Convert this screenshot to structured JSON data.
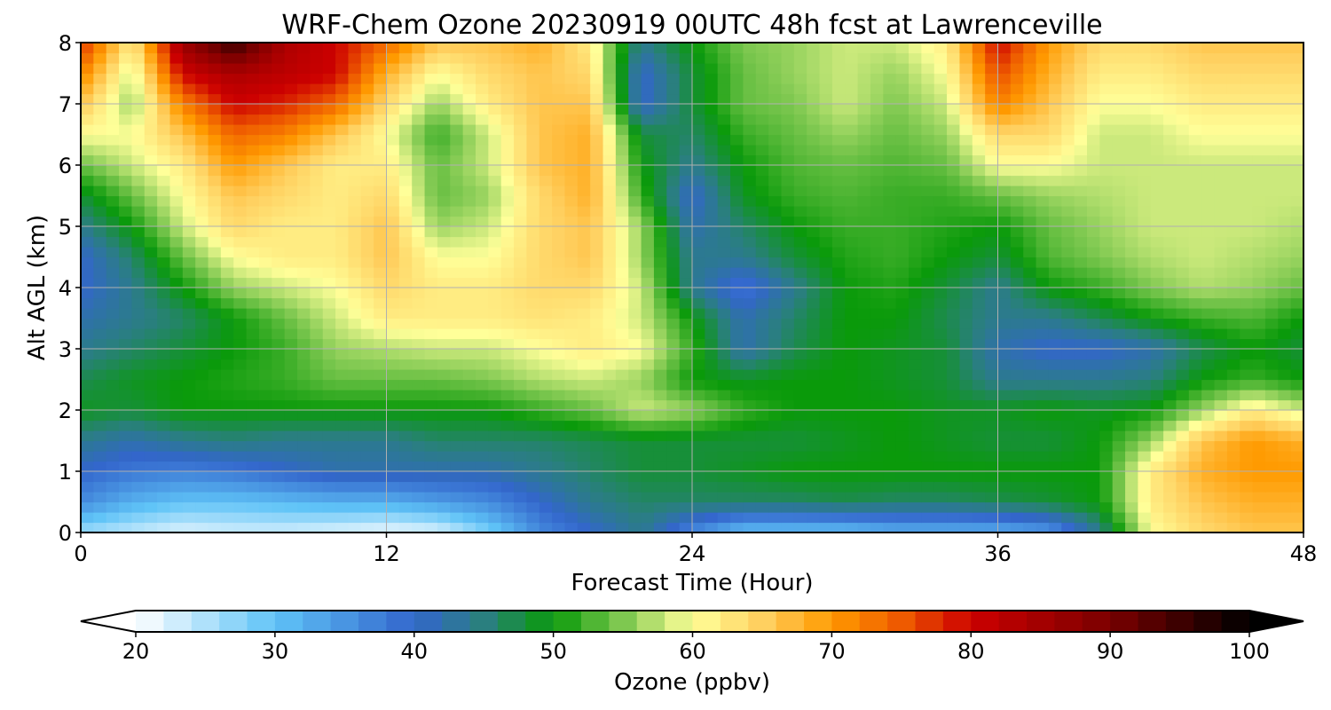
{
  "chart_data": {
    "type": "heatmap",
    "title": "WRF-Chem Ozone  20230919 00UTC 48h fcst at Lawrenceville",
    "xlabel": "Forecast Time (Hour)",
    "ylabel": "Alt AGL (km)",
    "xlim": [
      0,
      48
    ],
    "ylim": [
      0,
      8
    ],
    "x_ticks": [
      "0",
      "12",
      "24",
      "36",
      "48"
    ],
    "y_ticks": [
      "0",
      "1",
      "2",
      "3",
      "4",
      "5",
      "6",
      "7",
      "8"
    ],
    "grid": true,
    "colorbar": {
      "label": "Ozone  (ppbv)",
      "min": 20,
      "max": 100,
      "extend": "both",
      "ticks": [
        "20",
        "30",
        "40",
        "50",
        "60",
        "70",
        "80",
        "90",
        "100"
      ]
    },
    "x": [
      0,
      2,
      4,
      6,
      8,
      10,
      12,
      14,
      16,
      18,
      20,
      22,
      24,
      26,
      28,
      30,
      32,
      34,
      36,
      38,
      40,
      42,
      44,
      46,
      48
    ],
    "y": [
      0,
      0.5,
      1,
      1.5,
      2,
      2.5,
      3,
      3.5,
      4,
      4.5,
      5,
      5.5,
      6,
      6.5,
      7,
      7.5,
      8
    ],
    "z": [
      [
        26,
        24,
        22,
        23,
        23,
        22,
        21,
        22,
        28,
        36,
        40,
        44,
        36,
        30,
        30,
        30,
        32,
        32,
        32,
        34,
        44,
        60,
        64,
        66,
        66
      ],
      [
        36,
        32,
        30,
        30,
        31,
        32,
        32,
        34,
        36,
        40,
        44,
        46,
        46,
        46,
        46,
        47,
        46,
        46,
        47,
        48,
        50,
        62,
        66,
        68,
        68
      ],
      [
        40,
        38,
        37,
        38,
        40,
        42,
        42,
        42,
        42,
        44,
        46,
        48,
        48,
        49,
        50,
        50,
        50,
        50,
        50,
        50,
        50,
        62,
        68,
        70,
        70
      ],
      [
        44,
        42,
        44,
        45,
        44,
        44,
        44,
        46,
        46,
        46,
        47,
        48,
        48,
        48,
        48,
        49,
        50,
        49,
        48,
        48,
        50,
        56,
        66,
        70,
        68
      ],
      [
        49,
        48,
        50,
        50,
        50,
        50,
        50,
        50,
        50,
        52,
        54,
        58,
        56,
        52,
        50,
        50,
        50,
        49,
        49,
        50,
        49,
        50,
        56,
        62,
        58
      ],
      [
        47,
        49,
        50,
        51,
        52,
        54,
        54,
        54,
        55,
        57,
        58,
        56,
        50,
        49,
        50,
        50,
        49,
        48,
        44,
        44,
        44,
        45,
        50,
        52,
        50
      ],
      [
        44,
        46,
        48,
        50,
        52,
        56,
        57,
        58,
        58,
        60,
        62,
        60,
        52,
        42,
        47,
        50,
        49,
        48,
        42,
        40,
        40,
        42,
        47,
        50,
        48
      ],
      [
        42,
        44,
        46,
        50,
        54,
        58,
        62,
        62,
        62,
        63,
        62,
        58,
        50,
        42,
        46,
        50,
        50,
        47,
        44,
        44,
        47,
        50,
        52,
        53,
        50
      ],
      [
        40,
        44,
        50,
        56,
        58,
        60,
        64,
        62,
        62,
        64,
        64,
        58,
        44,
        38,
        44,
        50,
        51,
        48,
        44,
        50,
        52,
        55,
        57,
        56,
        54
      ],
      [
        40,
        46,
        54,
        60,
        62,
        62,
        66,
        60,
        60,
        64,
        66,
        56,
        44,
        44,
        48,
        51,
        52,
        50,
        48,
        53,
        55,
        57,
        58,
        57,
        56
      ],
      [
        44,
        50,
        58,
        64,
        62,
        62,
        66,
        56,
        58,
        64,
        66,
        56,
        42,
        46,
        50,
        52,
        52,
        51,
        50,
        54,
        56,
        58,
        58,
        58,
        57
      ],
      [
        48,
        54,
        60,
        66,
        64,
        62,
        64,
        54,
        56,
        64,
        68,
        52,
        40,
        49,
        52,
        53,
        52,
        52,
        54,
        56,
        57,
        58,
        58,
        58,
        58
      ],
      [
        54,
        58,
        62,
        70,
        66,
        62,
        62,
        54,
        58,
        66,
        68,
        50,
        44,
        50,
        53,
        54,
        53,
        54,
        60,
        60,
        58,
        58,
        58,
        58,
        58
      ],
      [
        60,
        60,
        66,
        74,
        72,
        66,
        60,
        52,
        58,
        66,
        68,
        48,
        46,
        52,
        54,
        56,
        54,
        56,
        64,
        64,
        58,
        58,
        60,
        60,
        60
      ],
      [
        66,
        56,
        72,
        80,
        78,
        74,
        64,
        56,
        62,
        66,
        66,
        40,
        48,
        54,
        55,
        58,
        55,
        58,
        72,
        66,
        60,
        60,
        62,
        62,
        62
      ],
      [
        72,
        58,
        80,
        84,
        82,
        80,
        68,
        60,
        64,
        66,
        64,
        40,
        48,
        54,
        56,
        58,
        56,
        60,
        76,
        68,
        62,
        62,
        64,
        64,
        64
      ],
      [
        78,
        62,
        86,
        96,
        84,
        80,
        74,
        66,
        66,
        68,
        62,
        44,
        50,
        55,
        56,
        58,
        58,
        62,
        80,
        70,
        64,
        64,
        66,
        66,
        66
      ]
    ],
    "color_stops": [
      [
        20,
        "#ffffff"
      ],
      [
        30,
        "#5fc3f7"
      ],
      [
        40,
        "#3366cc"
      ],
      [
        45,
        "#2a7f7f"
      ],
      [
        50,
        "#0a9a0a"
      ],
      [
        55,
        "#7ec850"
      ],
      [
        60,
        "#ffff99"
      ],
      [
        65,
        "#ffd060"
      ],
      [
        70,
        "#ff9a00"
      ],
      [
        75,
        "#ee5a00"
      ],
      [
        80,
        "#cc0000"
      ],
      [
        90,
        "#7a0000"
      ],
      [
        100,
        "#000000"
      ]
    ]
  }
}
